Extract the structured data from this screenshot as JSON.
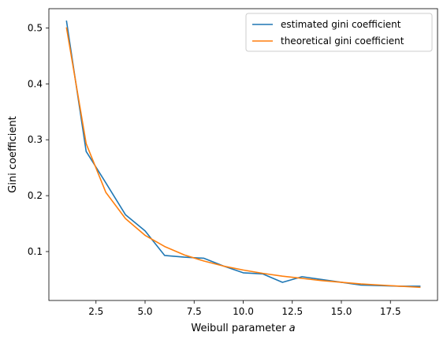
{
  "chart_data": {
    "type": "line",
    "title": "",
    "xlabel": "Weibull parameter ",
    "xlabel_italic": "a",
    "ylabel": "Gini coefficient",
    "xlim": [
      0.1,
      19.9
    ],
    "ylim": [
      0.0125,
      0.5345
    ],
    "x_ticks": [
      2.5,
      5.0,
      7.5,
      10.0,
      12.5,
      15.0,
      17.5
    ],
    "x_tick_labels": [
      "2.5",
      "5.0",
      "7.5",
      "10.0",
      "12.5",
      "15.0",
      "17.5"
    ],
    "y_ticks": [
      0.1,
      0.2,
      0.3,
      0.4,
      0.5
    ],
    "y_tick_labels": [
      "0.1",
      "0.2",
      "0.3",
      "0.4",
      "0.5"
    ],
    "grid": false,
    "legend_position": "top-right",
    "x": [
      1,
      2,
      3,
      4,
      5,
      6,
      7,
      8,
      9,
      10,
      11,
      12,
      13,
      14,
      15,
      16,
      17,
      18,
      19
    ],
    "series": [
      {
        "name": "estimated gini coefficient",
        "color": "#1f77b4",
        "values": [
          0.512,
          0.279,
          0.223,
          0.166,
          0.137,
          0.093,
          0.09,
          0.088,
          0.074,
          0.062,
          0.06,
          0.045,
          0.055,
          0.05,
          0.045,
          0.04,
          0.039,
          0.038,
          0.038
        ]
      },
      {
        "name": "theoretical gini coefficient",
        "color": "#ff7f0e",
        "values": [
          0.5,
          0.293,
          0.206,
          0.159,
          0.129,
          0.109,
          0.094,
          0.083,
          0.074,
          0.067,
          0.061,
          0.056,
          0.052,
          0.048,
          0.045,
          0.042,
          0.04,
          0.038,
          0.036
        ]
      }
    ]
  }
}
